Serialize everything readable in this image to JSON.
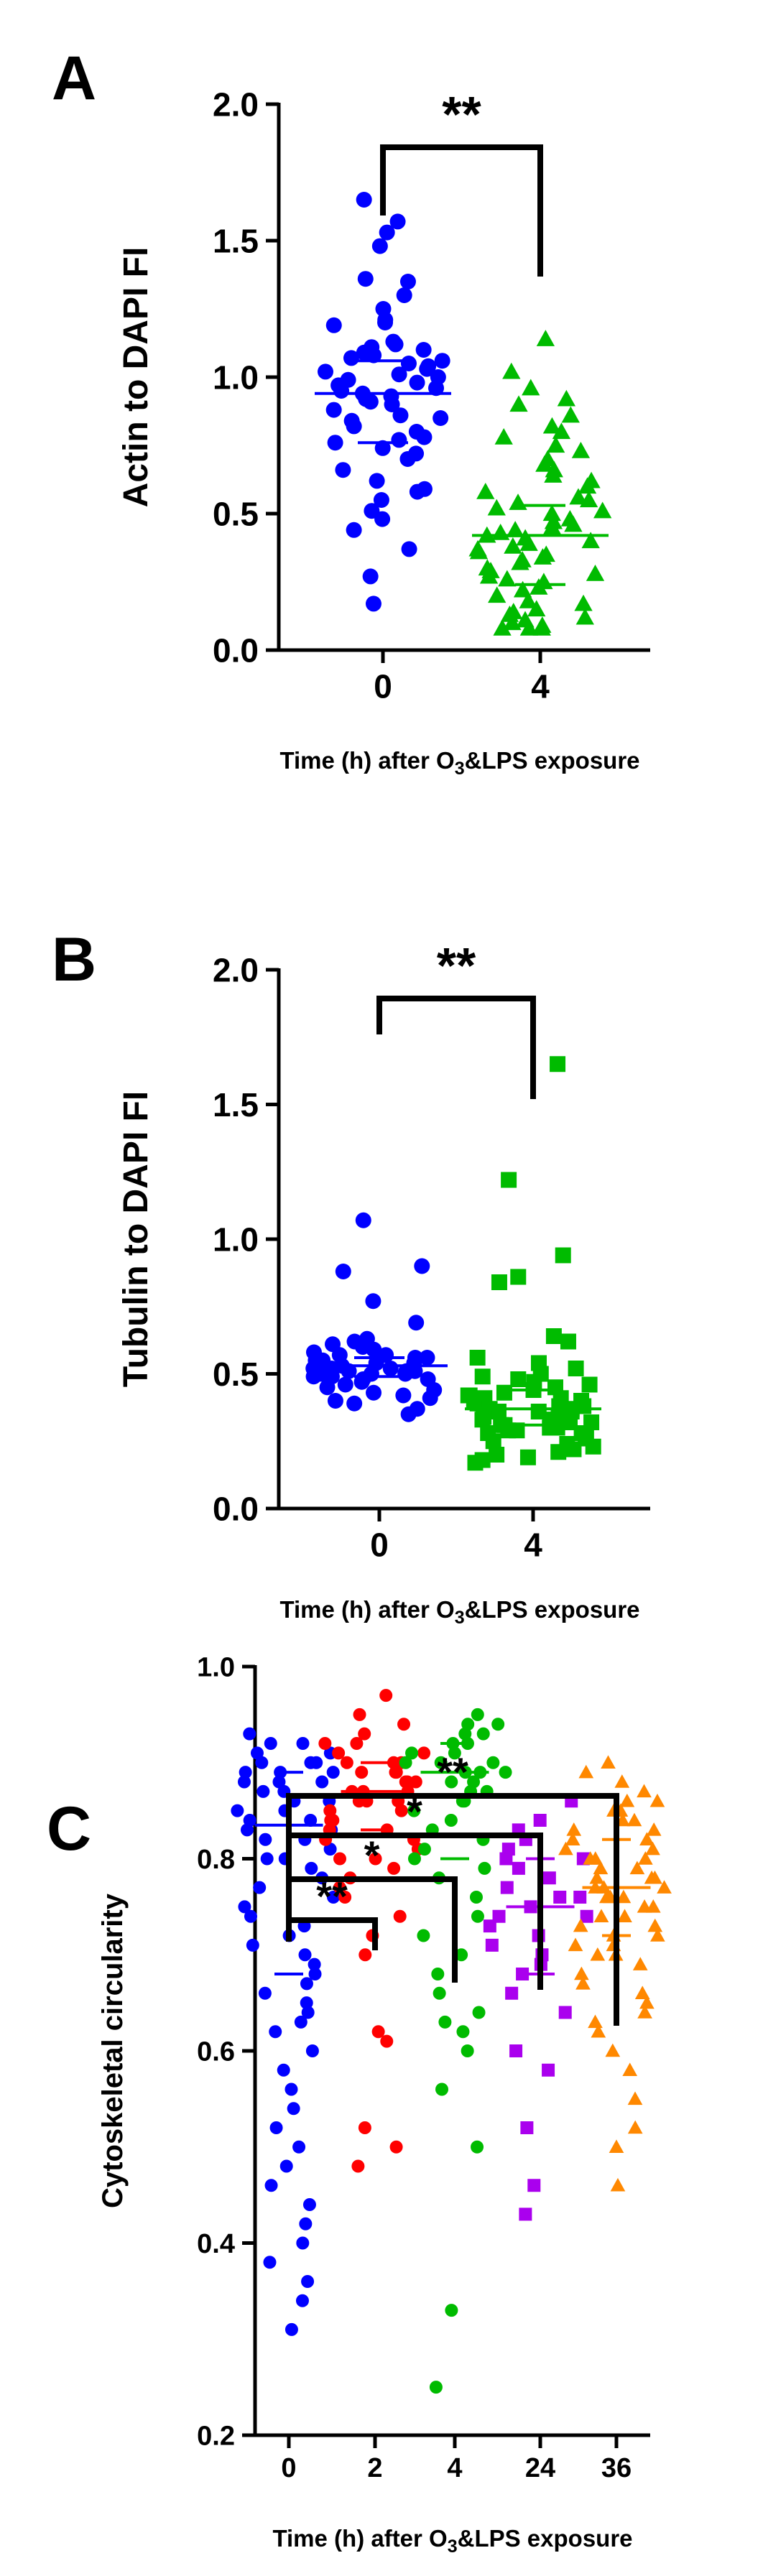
{
  "chart_data": [
    {
      "panel": "A",
      "type": "scatter",
      "ylabel": "Actin to DAPI FI",
      "xlabel": "Time (h) after O",
      "xlabel_sub": "3",
      "xlabel_tail": "&LPS exposure",
      "ylim": [
        0,
        2.0
      ],
      "yticks": [
        "0.0",
        "0.5",
        "1.0",
        "1.5",
        "2.0"
      ],
      "ytick_values": [
        0,
        0.5,
        1.0,
        1.5,
        2.0
      ],
      "categories": [
        "0",
        "4"
      ],
      "series": [
        {
          "category": "0",
          "color": "#0000ff",
          "marker": "circle",
          "median": 0.94,
          "q1": 0.76,
          "q3": 1.06,
          "values": [
            1.65,
            1.57,
            1.53,
            1.48,
            1.36,
            1.35,
            1.3,
            1.25,
            1.21,
            1.2,
            1.19,
            1.13,
            1.12,
            1.11,
            1.1,
            1.09,
            1.08,
            1.07,
            1.06,
            1.05,
            1.04,
            1.03,
            1.02,
            1.01,
            1.0,
            0.99,
            0.98,
            0.97,
            0.96,
            0.95,
            0.94,
            0.93,
            0.92,
            0.91,
            0.9,
            0.88,
            0.86,
            0.85,
            0.84,
            0.82,
            0.8,
            0.78,
            0.77,
            0.76,
            0.74,
            0.72,
            0.7,
            0.66,
            0.62,
            0.59,
            0.58,
            0.55,
            0.51,
            0.48,
            0.44,
            0.37,
            0.27,
            0.17
          ]
        },
        {
          "category": "4",
          "color": "#00bb00",
          "marker": "triangle",
          "median": 0.42,
          "q1": 0.24,
          "q3": 0.53,
          "values": [
            1.14,
            1.02,
            0.96,
            0.92,
            0.9,
            0.86,
            0.82,
            0.8,
            0.78,
            0.75,
            0.73,
            0.7,
            0.68,
            0.66,
            0.64,
            0.62,
            0.6,
            0.58,
            0.56,
            0.55,
            0.54,
            0.52,
            0.51,
            0.5,
            0.48,
            0.47,
            0.46,
            0.45,
            0.44,
            0.43,
            0.42,
            0.41,
            0.4,
            0.39,
            0.38,
            0.37,
            0.36,
            0.35,
            0.34,
            0.33,
            0.32,
            0.3,
            0.29,
            0.28,
            0.27,
            0.26,
            0.25,
            0.23,
            0.22,
            0.2,
            0.18,
            0.17,
            0.15,
            0.14,
            0.13,
            0.12,
            0.11,
            0.1,
            0.09,
            0.08,
            0.08,
            0.08
          ]
        }
      ],
      "significance": [
        {
          "from": "0",
          "to": "4",
          "label": "**"
        }
      ]
    },
    {
      "panel": "B",
      "type": "scatter",
      "ylabel": "Tubulin to DAPI FI",
      "xlabel": "Time (h) after O",
      "xlabel_sub": "3",
      "xlabel_tail": "&LPS exposure",
      "ylim": [
        0,
        2.0
      ],
      "yticks": [
        "0.0",
        "0.5",
        "1.0",
        "1.5",
        "2.0"
      ],
      "ytick_values": [
        0,
        0.5,
        1.0,
        1.5,
        2.0
      ],
      "categories": [
        "0",
        "4"
      ],
      "series": [
        {
          "category": "0",
          "color": "#0000ff",
          "marker": "circle",
          "median": 0.53,
          "q1": 0.49,
          "q3": 0.56,
          "values": [
            1.07,
            0.9,
            0.88,
            0.77,
            0.69,
            0.63,
            0.62,
            0.61,
            0.6,
            0.59,
            0.58,
            0.57,
            0.57,
            0.56,
            0.56,
            0.55,
            0.55,
            0.54,
            0.54,
            0.53,
            0.53,
            0.53,
            0.52,
            0.52,
            0.52,
            0.51,
            0.51,
            0.51,
            0.5,
            0.5,
            0.5,
            0.49,
            0.49,
            0.48,
            0.48,
            0.47,
            0.46,
            0.45,
            0.44,
            0.43,
            0.42,
            0.41,
            0.4,
            0.39,
            0.37,
            0.35
          ]
        },
        {
          "category": "4",
          "color": "#00bb00",
          "marker": "square",
          "median": 0.37,
          "q1": 0.31,
          "q3": 0.44,
          "values": [
            1.65,
            1.22,
            0.94,
            0.86,
            0.84,
            0.64,
            0.62,
            0.56,
            0.54,
            0.52,
            0.5,
            0.49,
            0.48,
            0.47,
            0.46,
            0.45,
            0.44,
            0.43,
            0.42,
            0.42,
            0.41,
            0.41,
            0.4,
            0.4,
            0.39,
            0.39,
            0.38,
            0.38,
            0.37,
            0.37,
            0.36,
            0.36,
            0.36,
            0.35,
            0.35,
            0.34,
            0.34,
            0.33,
            0.33,
            0.33,
            0.32,
            0.32,
            0.31,
            0.31,
            0.3,
            0.3,
            0.29,
            0.29,
            0.28,
            0.28,
            0.27,
            0.26,
            0.25,
            0.24,
            0.23,
            0.22,
            0.21,
            0.2,
            0.19,
            0.18,
            0.17
          ]
        }
      ],
      "significance": [
        {
          "from": "0",
          "to": "4",
          "label": "**"
        }
      ]
    },
    {
      "panel": "C",
      "type": "scatter",
      "ylabel": "Cytoskeletal circularity",
      "xlabel": "Time (h) after O",
      "xlabel_sub": "3",
      "xlabel_tail": "&LPS exposure",
      "ylim": [
        0.2,
        1.0
      ],
      "yticks": [
        "0.2",
        "0.4",
        "0.6",
        "0.8",
        "1.0"
      ],
      "ytick_values": [
        0.2,
        0.4,
        0.6,
        0.8,
        1.0
      ],
      "categories": [
        "0",
        "2",
        "4",
        "24",
        "36"
      ],
      "series": [
        {
          "category": "0",
          "color": "#0000ff",
          "marker": "circle",
          "median": 0.835,
          "q1": 0.68,
          "q3": 0.89,
          "values": [
            0.93,
            0.92,
            0.92,
            0.91,
            0.91,
            0.9,
            0.9,
            0.9,
            0.89,
            0.89,
            0.89,
            0.88,
            0.88,
            0.88,
            0.87,
            0.87,
            0.86,
            0.86,
            0.85,
            0.85,
            0.84,
            0.84,
            0.83,
            0.83,
            0.82,
            0.82,
            0.81,
            0.8,
            0.8,
            0.79,
            0.78,
            0.77,
            0.76,
            0.75,
            0.74,
            0.73,
            0.72,
            0.71,
            0.7,
            0.69,
            0.68,
            0.67,
            0.66,
            0.65,
            0.64,
            0.63,
            0.62,
            0.6,
            0.58,
            0.56,
            0.54,
            0.52,
            0.5,
            0.48,
            0.46,
            0.44,
            0.42,
            0.4,
            0.38,
            0.36,
            0.34,
            0.31
          ]
        },
        {
          "category": "2",
          "color": "#ff0000",
          "marker": "circle",
          "median": 0.87,
          "q1": 0.83,
          "q3": 0.9,
          "values": [
            0.97,
            0.95,
            0.94,
            0.93,
            0.92,
            0.92,
            0.91,
            0.91,
            0.9,
            0.9,
            0.9,
            0.89,
            0.89,
            0.89,
            0.88,
            0.88,
            0.88,
            0.87,
            0.87,
            0.87,
            0.86,
            0.86,
            0.86,
            0.85,
            0.85,
            0.84,
            0.84,
            0.83,
            0.83,
            0.82,
            0.82,
            0.81,
            0.8,
            0.8,
            0.79,
            0.78,
            0.77,
            0.76,
            0.74,
            0.72,
            0.7,
            0.62,
            0.61,
            0.52,
            0.5,
            0.48
          ]
        },
        {
          "category": "4",
          "color": "#00bb00",
          "marker": "circle",
          "median": 0.89,
          "q1": 0.8,
          "q3": 0.92,
          "values": [
            0.95,
            0.94,
            0.94,
            0.93,
            0.93,
            0.92,
            0.92,
            0.91,
            0.91,
            0.9,
            0.9,
            0.9,
            0.89,
            0.89,
            0.89,
            0.88,
            0.88,
            0.87,
            0.87,
            0.86,
            0.86,
            0.85,
            0.84,
            0.83,
            0.82,
            0.81,
            0.8,
            0.79,
            0.78,
            0.76,
            0.74,
            0.72,
            0.7,
            0.68,
            0.66,
            0.64,
            0.63,
            0.62,
            0.6,
            0.56,
            0.5,
            0.33,
            0.25
          ]
        },
        {
          "category": "24",
          "color": "#aa00ee",
          "marker": "square",
          "median": 0.75,
          "q1": 0.68,
          "q3": 0.8,
          "values": [
            0.86,
            0.84,
            0.83,
            0.82,
            0.81,
            0.8,
            0.8,
            0.79,
            0.78,
            0.77,
            0.76,
            0.76,
            0.75,
            0.74,
            0.74,
            0.73,
            0.72,
            0.71,
            0.7,
            0.69,
            0.68,
            0.66,
            0.64,
            0.6,
            0.58,
            0.52,
            0.46,
            0.43
          ]
        },
        {
          "category": "36",
          "color": "#ff8800",
          "marker": "triangle",
          "median": 0.77,
          "q1": 0.72,
          "q3": 0.82,
          "values": [
            0.9,
            0.89,
            0.88,
            0.87,
            0.86,
            0.86,
            0.85,
            0.85,
            0.84,
            0.84,
            0.83,
            0.83,
            0.82,
            0.82,
            0.81,
            0.81,
            0.8,
            0.8,
            0.8,
            0.79,
            0.79,
            0.78,
            0.78,
            0.78,
            0.77,
            0.77,
            0.77,
            0.76,
            0.76,
            0.76,
            0.75,
            0.75,
            0.74,
            0.74,
            0.73,
            0.73,
            0.72,
            0.72,
            0.71,
            0.71,
            0.7,
            0.7,
            0.69,
            0.68,
            0.67,
            0.66,
            0.65,
            0.64,
            0.63,
            0.62,
            0.6,
            0.58,
            0.55,
            0.52,
            0.5,
            0.46
          ]
        }
      ],
      "significance": [
        {
          "from": "0",
          "to": "2",
          "label": "**"
        },
        {
          "from": "0",
          "to": "4",
          "label": "*"
        },
        {
          "from": "0",
          "to": "24",
          "label": "*"
        },
        {
          "from": "0",
          "to": "36",
          "label": "**"
        }
      ]
    }
  ]
}
